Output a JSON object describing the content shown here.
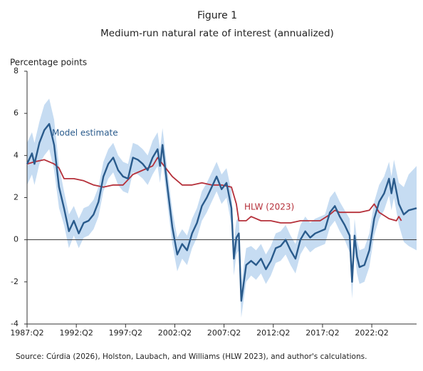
{
  "chart_data": {
    "type": "line",
    "title": "Figure 1",
    "subtitle": "Medium-run natural rate of interest (annualized)",
    "y_label": "Percentage points",
    "source": "Source: Cúrdia (2026), Holston, Laubach, and Williams (HLW 2023), and author's calculations.",
    "xlim": [
      1987.25,
      2026.8
    ],
    "xticks": [
      {
        "value": 1987.25,
        "label": "1987:Q2"
      },
      {
        "value": 1992.25,
        "label": "1992:Q2"
      },
      {
        "value": 1997.25,
        "label": "1997:Q2"
      },
      {
        "value": 2002.25,
        "label": "2002:Q2"
      },
      {
        "value": 2007.25,
        "label": "2007:Q2"
      },
      {
        "value": 2012.25,
        "label": "2012:Q2"
      },
      {
        "value": 2017.25,
        "label": "2017:Q2"
      },
      {
        "value": 2022.25,
        "label": "2022:Q2"
      }
    ],
    "ylim": [
      -4,
      8
    ],
    "yticks": [
      -4,
      -2,
      0,
      2,
      4,
      6,
      8
    ],
    "zero_line": true,
    "series": [
      {
        "name": "Model estimate",
        "color": "#2a5b8c",
        "band_color": "#c6dcf2",
        "x": [
          1987.25,
          1987.75,
          1988,
          1988.5,
          1989,
          1989.5,
          1990,
          1990.5,
          1991,
          1991.5,
          1992,
          1992.5,
          1993,
          1993.5,
          1994,
          1994.5,
          1995,
          1995.5,
          1996,
          1996.5,
          1997,
          1997.5,
          1998,
          1998.5,
          1999,
          1999.5,
          2000,
          2000.5,
          2000.75,
          2001,
          2001.5,
          2002,
          2002.5,
          2003,
          2003.5,
          2004,
          2004.5,
          2005,
          2005.5,
          2006,
          2006.5,
          2007,
          2007.5,
          2008,
          2008.25,
          2008.5,
          2008.75,
          2009,
          2009.5,
          2010,
          2010.5,
          2011,
          2011.5,
          2012,
          2012.5,
          2013,
          2013.5,
          2014,
          2014.5,
          2015,
          2015.5,
          2016,
          2016.5,
          2017,
          2017.5,
          2018,
          2018.5,
          2019,
          2019.5,
          2020,
          2020.25,
          2020.5,
          2020.75,
          2021,
          2021.5,
          2022,
          2022.5,
          2023,
          2023.5,
          2024,
          2024.25,
          2024.5,
          2025,
          2025.5,
          2026,
          2026.8
        ],
        "values": [
          3.6,
          4.1,
          3.6,
          4.6,
          5.2,
          5.5,
          4.5,
          2.5,
          1.5,
          0.4,
          0.9,
          0.3,
          0.8,
          0.9,
          1.2,
          1.8,
          3.0,
          3.6,
          3.9,
          3.3,
          3.0,
          2.9,
          3.9,
          3.8,
          3.6,
          3.3,
          3.9,
          4.3,
          3.5,
          4.5,
          2.5,
          0.6,
          -0.7,
          -0.2,
          -0.5,
          0.3,
          0.8,
          1.6,
          2.0,
          2.5,
          3.0,
          2.4,
          2.7,
          1.5,
          -0.9,
          0.1,
          0.3,
          -2.9,
          -1.2,
          -1.0,
          -1.2,
          -0.9,
          -1.4,
          -1.0,
          -0.4,
          -0.3,
          0.0,
          -0.5,
          -0.9,
          0.0,
          0.4,
          0.1,
          0.3,
          0.4,
          0.5,
          1.3,
          1.6,
          1.1,
          0.7,
          0.2,
          -2.0,
          0.2,
          -0.8,
          -1.3,
          -1.2,
          -0.5,
          1.0,
          1.8,
          2.2,
          2.9,
          2.2,
          2.9,
          1.7,
          1.2,
          1.4,
          1.5
        ],
        "lower": [
          2.6,
          3.1,
          2.6,
          3.6,
          4.0,
          4.3,
          3.3,
          1.5,
          0.7,
          -0.4,
          0.2,
          -0.4,
          0.1,
          0.2,
          0.5,
          1.1,
          2.3,
          2.9,
          3.2,
          2.6,
          2.3,
          2.2,
          3.2,
          3.1,
          2.9,
          2.6,
          3.1,
          3.5,
          2.7,
          3.7,
          1.7,
          -0.2,
          -1.5,
          -0.9,
          -1.2,
          -0.4,
          0.1,
          0.9,
          1.3,
          1.8,
          2.3,
          1.7,
          2.0,
          0.7,
          -1.7,
          -0.7,
          -0.5,
          -3.7,
          -2.0,
          -1.7,
          -1.9,
          -1.6,
          -2.1,
          -1.7,
          -1.1,
          -1.0,
          -0.7,
          -1.2,
          -1.6,
          -0.7,
          -0.3,
          -0.6,
          -0.4,
          -0.3,
          -0.2,
          0.6,
          0.9,
          0.4,
          0.0,
          -0.6,
          -2.8,
          -0.6,
          -1.6,
          -2.1,
          -2.0,
          -1.3,
          0.2,
          1.0,
          1.4,
          2.1,
          1.4,
          2.0,
          0.7,
          -0.1,
          -0.3,
          -0.5
        ],
        "upper": [
          4.6,
          5.1,
          4.6,
          5.6,
          6.4,
          6.7,
          5.7,
          3.5,
          2.3,
          1.2,
          1.6,
          1.0,
          1.5,
          1.6,
          1.9,
          2.5,
          3.7,
          4.3,
          4.6,
          4.0,
          3.7,
          3.6,
          4.6,
          4.5,
          4.3,
          4.0,
          4.7,
          5.1,
          4.3,
          5.3,
          3.3,
          1.4,
          0.1,
          0.5,
          0.2,
          1.0,
          1.5,
          2.3,
          2.7,
          3.2,
          3.7,
          3.1,
          3.4,
          2.3,
          -0.1,
          0.9,
          1.1,
          -2.1,
          -0.4,
          -0.3,
          -0.5,
          -0.2,
          -0.7,
          -0.3,
          0.3,
          0.4,
          0.7,
          0.2,
          -0.2,
          0.7,
          1.1,
          0.8,
          1.0,
          1.1,
          1.2,
          2.0,
          2.3,
          1.8,
          1.4,
          1.0,
          -1.2,
          1.0,
          0.0,
          -0.5,
          -0.4,
          0.3,
          1.8,
          2.6,
          3.0,
          3.7,
          3.0,
          3.8,
          2.7,
          2.5,
          3.1,
          3.5
        ]
      },
      {
        "name": "HLW (2023)",
        "color": "#b5303a",
        "x": [
          1987.25,
          1988,
          1989,
          1990,
          1990.5,
          1991,
          1992,
          1993,
          1994,
          1995,
          1996,
          1997,
          1998,
          1999,
          2000,
          2000.5,
          2001,
          2002,
          2003,
          2004,
          2005,
          2006,
          2007,
          2008,
          2008.5,
          2008.75,
          2009.5,
          2010,
          2011,
          2012,
          2013,
          2014,
          2015,
          2016,
          2017,
          2018,
          2018.5,
          2019,
          2020,
          2021,
          2022,
          2022.5,
          2023,
          2024,
          2024.75,
          2025,
          2025.25
        ],
        "values": [
          3.6,
          3.7,
          3.8,
          3.6,
          3.4,
          2.9,
          2.9,
          2.8,
          2.6,
          2.5,
          2.6,
          2.6,
          3.1,
          3.3,
          3.5,
          3.9,
          3.6,
          3.0,
          2.6,
          2.6,
          2.7,
          2.6,
          2.6,
          2.5,
          1.7,
          0.9,
          0.9,
          1.1,
          0.9,
          0.9,
          0.8,
          0.8,
          0.9,
          0.9,
          0.9,
          1.2,
          1.4,
          1.3,
          1.3,
          1.3,
          1.4,
          1.7,
          1.3,
          1.0,
          0.9,
          1.1,
          0.9
        ]
      }
    ]
  }
}
